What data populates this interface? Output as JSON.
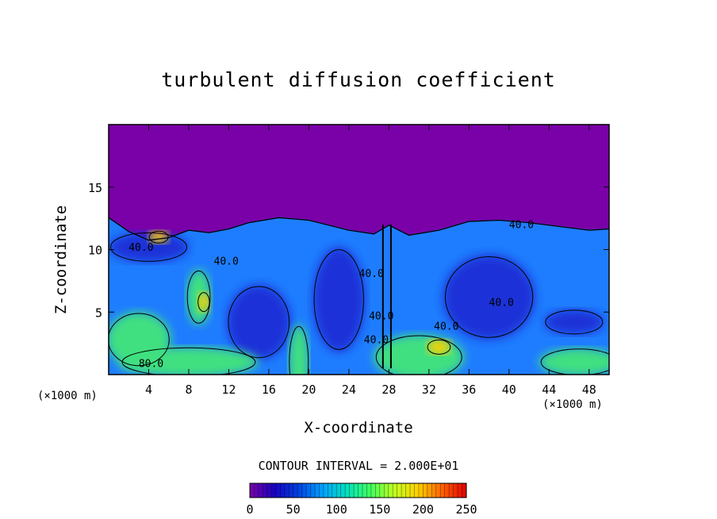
{
  "chart_data": {
    "type": "heatmap",
    "title": "turbulent diffusion coefficient",
    "xlabel": "X-coordinate",
    "ylabel": "Z-coordinate",
    "x_unit": "(×1000 m)",
    "y_unit": "(×1000 m)",
    "xlim": [
      0,
      50
    ],
    "ylim": [
      0,
      20
    ],
    "x_ticks": [
      "4",
      "8",
      "12",
      "16",
      "20",
      "24",
      "28",
      "32",
      "36",
      "40",
      "44",
      "48"
    ],
    "y_ticks": [
      "5",
      "10",
      "15"
    ],
    "contour_interval_text": "CONTOUR INTERVAL = 2.000E+01",
    "contour_labels": [
      "40.0",
      "80.0",
      "40.0",
      "40.0",
      "40.0",
      "40.0",
      "40.0",
      "40.0",
      "40.0"
    ],
    "colorbar": {
      "min": 0,
      "max": 250,
      "ticks": [
        "0",
        "50",
        "100",
        "150",
        "200",
        "250"
      ],
      "colors": [
        "#7a00a8",
        "#1a00c0",
        "#0040e0",
        "#00a0ff",
        "#00e0c0",
        "#40ff60",
        "#c0ff20",
        "#ffd000",
        "#ff6000",
        "#e00000"
      ]
    },
    "colors": {
      "background_field": "#7a00a8",
      "low_turbulence": "#1a30d8",
      "mid_turbulence": "#1e7dff",
      "high_turbulence": "#40e080",
      "peak_turbulence": "#ffd000"
    }
  }
}
